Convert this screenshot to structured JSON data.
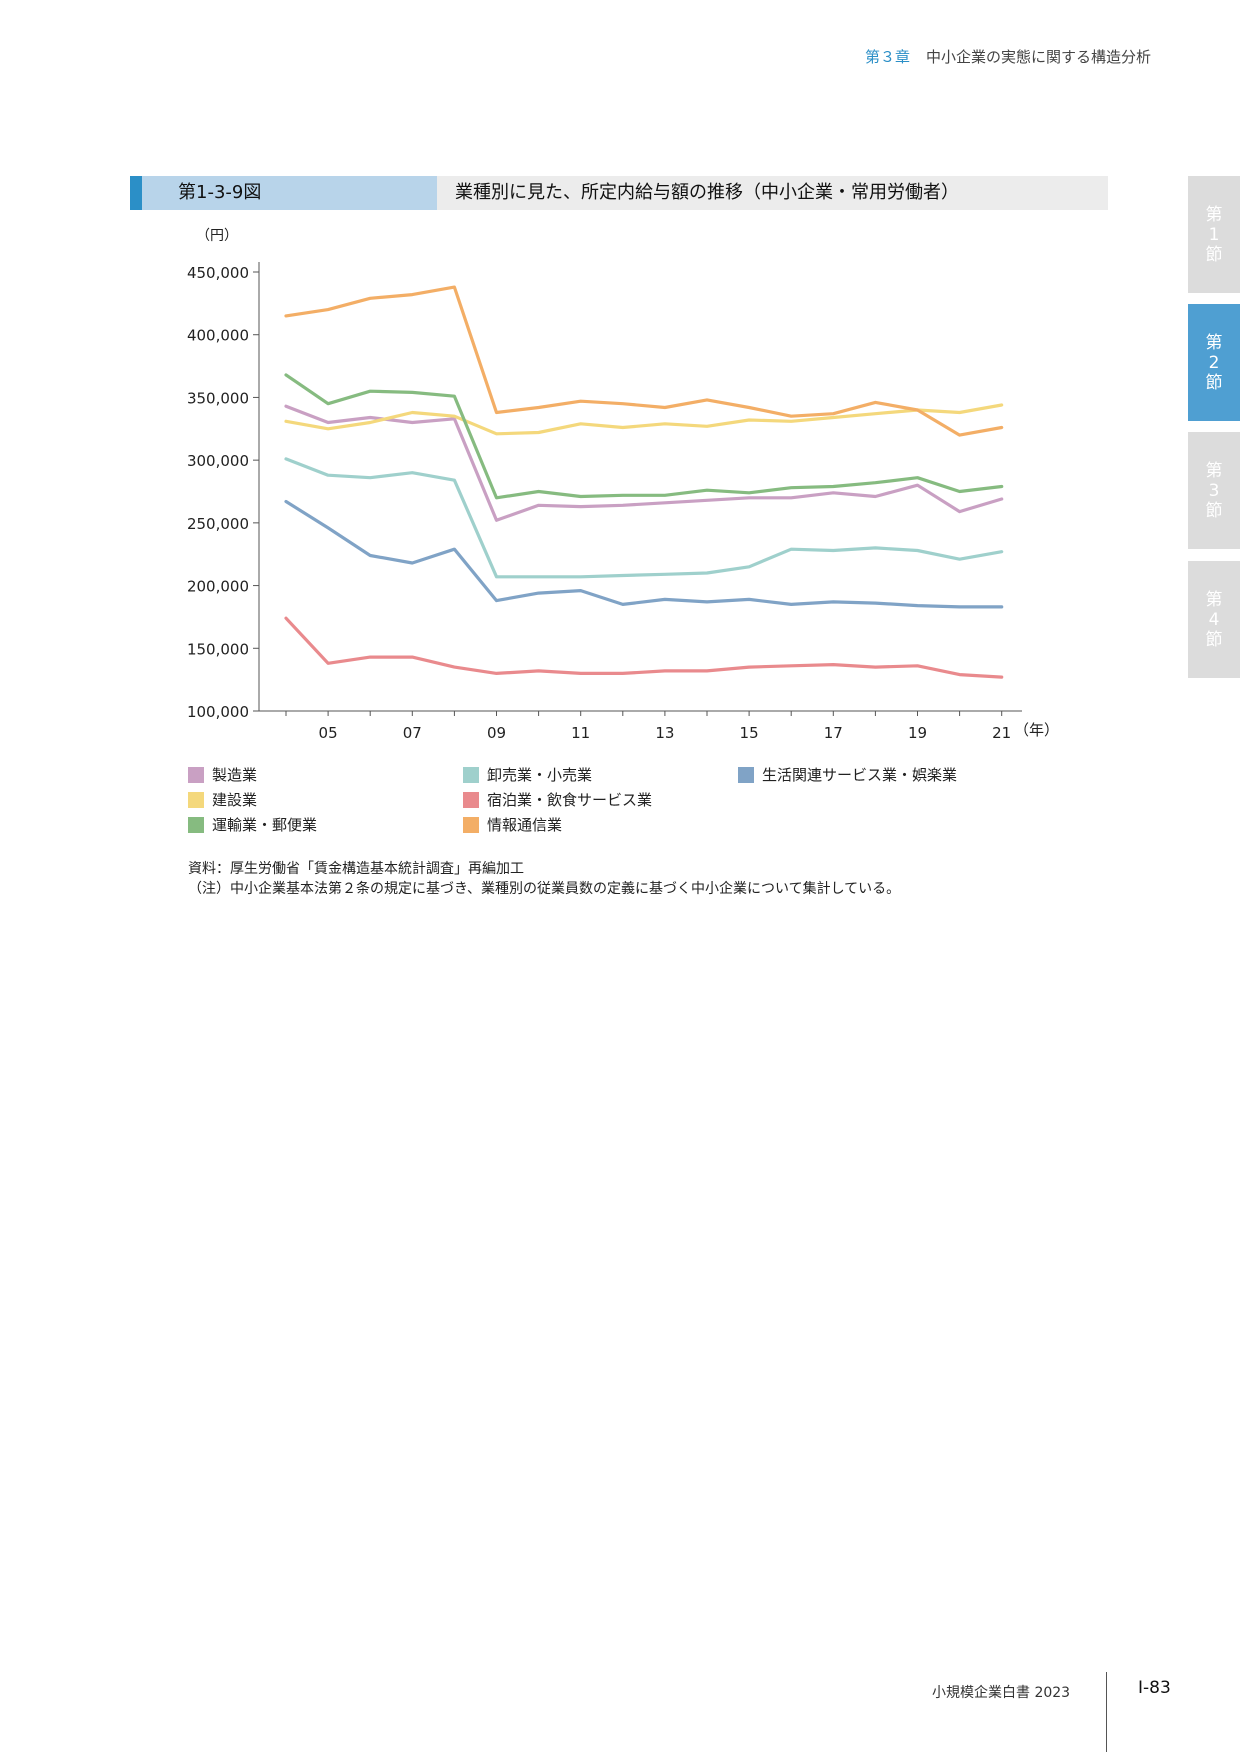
{
  "header": {
    "chapter": "第３章",
    "title": "中小企業の実態に関する構造分析"
  },
  "figure": {
    "number": "第1-3-9図",
    "title": "業種別に見た、所定内給与額の推移（中小企業・常用労働者）"
  },
  "side_tabs": [
    {
      "label": "第1節",
      "active": false
    },
    {
      "label": "第2節",
      "active": true
    },
    {
      "label": "第3節",
      "active": false
    },
    {
      "label": "第4節",
      "active": false
    }
  ],
  "chart_data": {
    "type": "line",
    "ylabel": "（円）",
    "xlabel": "（年）",
    "x": [
      "04",
      "05",
      "06",
      "07",
      "08",
      "09",
      "10",
      "11",
      "12",
      "13",
      "14",
      "15",
      "16",
      "17",
      "18",
      "19",
      "20",
      "21"
    ],
    "x_tick_labels": [
      "05",
      "07",
      "09",
      "11",
      "13",
      "15",
      "17",
      "19",
      "21"
    ],
    "y_tick_labels": [
      "100,000",
      "150,000",
      "200,000",
      "250,000",
      "300,000",
      "350,000",
      "400,000",
      "450,000"
    ],
    "ylim": [
      100000,
      450000
    ],
    "grid": false,
    "legend_position": "bottom",
    "series": [
      {
        "name": "製造業",
        "color": "#c9a0c3",
        "values": [
          343000,
          330000,
          334000,
          330000,
          333000,
          252000,
          264000,
          263000,
          264000,
          266000,
          268000,
          270000,
          270000,
          274000,
          271000,
          280000,
          259000,
          269000
        ]
      },
      {
        "name": "卸売業・小売業",
        "color": "#9fd0cc",
        "values": [
          301000,
          288000,
          286000,
          290000,
          284000,
          207000,
          207000,
          207000,
          208000,
          209000,
          210000,
          215000,
          229000,
          228000,
          230000,
          228000,
          221000,
          227000
        ]
      },
      {
        "name": "生活関連サービス業・娯楽業",
        "color": "#80a3c6",
        "values": [
          267000,
          246000,
          224000,
          218000,
          229000,
          188000,
          194000,
          196000,
          185000,
          189000,
          187000,
          189000,
          185000,
          187000,
          186000,
          184000,
          183000,
          183000
        ]
      },
      {
        "name": "建設業",
        "color": "#f4d87c",
        "values": [
          331000,
          325000,
          330000,
          338000,
          335000,
          321000,
          322000,
          329000,
          326000,
          329000,
          327000,
          332000,
          331000,
          334000,
          337000,
          340000,
          338000,
          344000
        ]
      },
      {
        "name": "宿泊業・飲食サービス業",
        "color": "#e98a8d",
        "values": [
          174000,
          138000,
          143000,
          143000,
          135000,
          130000,
          132000,
          130000,
          130000,
          132000,
          132000,
          135000,
          136000,
          137000,
          135000,
          136000,
          129000,
          127000
        ]
      },
      {
        "name": "運輸業・郵便業",
        "color": "#86bb80",
        "values": [
          368000,
          345000,
          355000,
          354000,
          351000,
          270000,
          275000,
          271000,
          272000,
          272000,
          276000,
          274000,
          278000,
          279000,
          282000,
          286000,
          275000,
          279000
        ]
      },
      {
        "name": "情報通信業",
        "color": "#f3ae66",
        "values": [
          415000,
          420000,
          429000,
          432000,
          438000,
          338000,
          342000,
          347000,
          345000,
          342000,
          348000,
          342000,
          335000,
          337000,
          346000,
          340000,
          320000,
          326000
        ]
      }
    ]
  },
  "notes": {
    "source": "資料：厚生労働省「賃金構造基本統計調査」再編加工",
    "note": "（注）中小企業基本法第２条の規定に基づき、業種別の従業員数の定義に基づく中小企業について集計している。"
  },
  "footer": {
    "publication": "小規模企業白書 2023",
    "page": "I-83"
  }
}
